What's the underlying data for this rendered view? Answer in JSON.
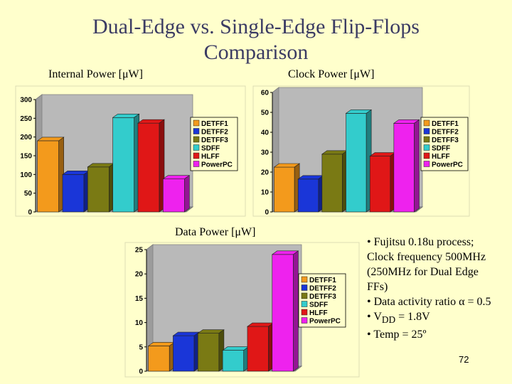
{
  "slide": {
    "title": "Dual-Edge vs. Single-Edge Flip-Flops\nComparison",
    "page_number": "72",
    "bullets": [
      {
        "text": "• Fujitsu 0.18u process; Clock frequency 500MHz (250MHz for Dual Edge FFs)"
      },
      {
        "text": "• Data activity ratio α = 0.5"
      },
      {
        "pre": "• V",
        "sub": "DD",
        "post": " = 1.8V"
      },
      {
        "text": "• Temp = 25º"
      }
    ]
  },
  "colors": {
    "DETFF1": "#f39a1c",
    "DETFF2": "#1a36d8",
    "DETFF3": "#7a7a14",
    "SDFF": "#33cccc",
    "HLFF": "#e01717",
    "PowerPC": "#ee22ee"
  },
  "chart_data": [
    {
      "type": "bar",
      "title": "Internal Power [μW]",
      "categories": [
        "DETFF1",
        "DETFF2",
        "DETFF3",
        "SDFF",
        "HLFF",
        "PowerPC"
      ],
      "values": [
        190,
        100,
        120,
        252,
        237,
        88
      ],
      "ylim": [
        0,
        300
      ],
      "yticks": [
        "0",
        "50",
        "100",
        "150",
        "200",
        "250",
        "300"
      ],
      "legend": [
        "DETFF1",
        "DETFF2",
        "DETFF3",
        "SDFF",
        "HLFF",
        "PowerPC"
      ],
      "legend_position": "right"
    },
    {
      "type": "bar",
      "title": "Clock Power [μW]",
      "categories": [
        "DETFF1",
        "DETFF2",
        "DETFF3",
        "SDFF",
        "HLFF",
        "PowerPC"
      ],
      "values": [
        22.5,
        16.5,
        29,
        49.5,
        28,
        44.5
      ],
      "ylim": [
        0,
        60
      ],
      "yticks": [
        "0",
        "10",
        "20",
        "30",
        "40",
        "50",
        "60"
      ],
      "legend": [
        "DETFF1",
        "DETFF2",
        "DETFF3",
        "SDFF",
        "HLFF",
        "PowerPC"
      ],
      "legend_position": "right"
    },
    {
      "type": "bar",
      "title": "Data Power [μW]",
      "categories": [
        "DETFF1",
        "DETFF2",
        "DETFF3",
        "SDFF",
        "HLFF",
        "PowerPC"
      ],
      "values": [
        5.2,
        7.3,
        7.8,
        4.3,
        9.2,
        24
      ],
      "ylim": [
        0,
        25
      ],
      "yticks": [
        "0",
        "5",
        "10",
        "15",
        "20",
        "25"
      ],
      "legend": [
        "DETFF1",
        "DETFF2",
        "DETFF3",
        "SDFF",
        "HLFF",
        "PowerPC"
      ],
      "legend_position": "right"
    }
  ]
}
